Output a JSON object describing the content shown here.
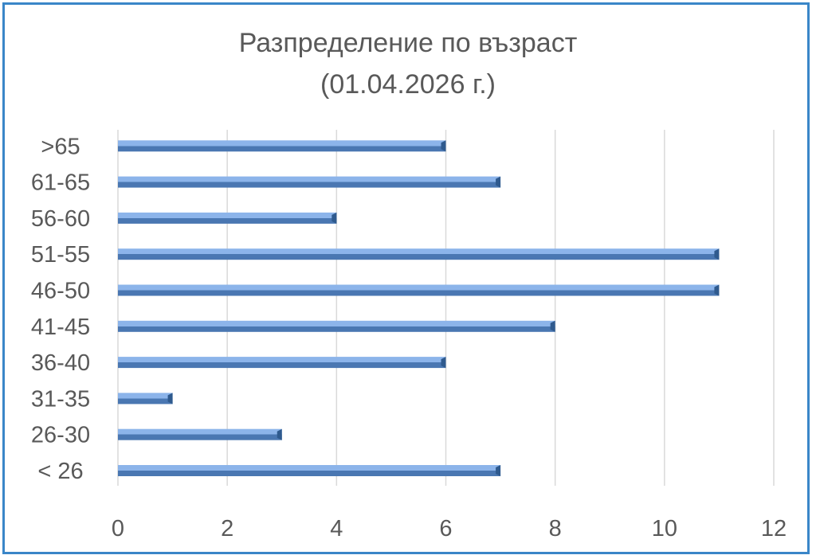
{
  "chart_data": {
    "type": "bar",
    "orientation": "horizontal",
    "title": "Разпределение по възраст",
    "subtitle": "(01.04.2026 г.)",
    "categories": [
      "< 26",
      "26-30",
      "31-35",
      "36-40",
      "41-45",
      "46-50",
      "51-55",
      "56-60",
      "61-65",
      ">65"
    ],
    "values": [
      7,
      3,
      1,
      6,
      8,
      11,
      11,
      4,
      7,
      6
    ],
    "xlim": [
      0,
      12
    ],
    "x_ticks": [
      "0",
      "2",
      "4",
      "6",
      "8",
      "10",
      "12"
    ],
    "grid": true,
    "colors": {
      "bar_top": "#8cb4ea",
      "bar_bottom": "#4a77b2",
      "bar_end": "#2f5a8e",
      "grid": "#d9d9d9",
      "border": "#3a86c8",
      "text": "#595959"
    }
  }
}
